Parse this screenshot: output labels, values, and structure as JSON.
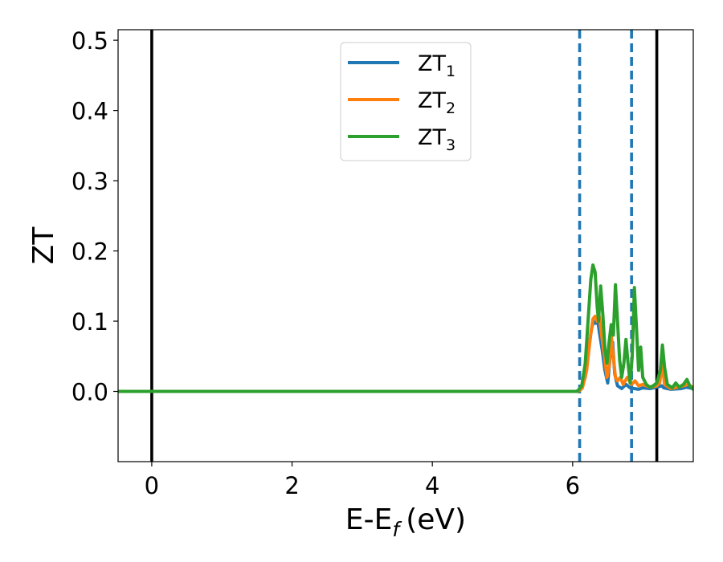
{
  "chart_data": {
    "type": "line",
    "xlabel": {
      "main": "E-E",
      "sub": "f",
      "unit": "(eV)"
    },
    "ylabel": "ZT",
    "xlim": [
      -0.48,
      7.72
    ],
    "ylim": [
      -0.1,
      0.515
    ],
    "x_ticks": [
      0,
      2,
      4,
      6
    ],
    "x_tick_labels": [
      "0",
      "2",
      "4",
      "6"
    ],
    "y_ticks": [
      0.0,
      0.1,
      0.2,
      0.3,
      0.4,
      0.5
    ],
    "y_tick_labels": [
      "0.0",
      "0.1",
      "0.2",
      "0.3",
      "0.4",
      "0.5"
    ],
    "grid": false,
    "legend_position": "upper-center",
    "vertical_lines": [
      {
        "x": 0.0,
        "style": "solid",
        "color": "#000000"
      },
      {
        "x": 7.2,
        "style": "solid",
        "color": "#000000"
      },
      {
        "x": 6.1,
        "style": "dashed",
        "color": "#1f77b4"
      },
      {
        "x": 6.84,
        "style": "dashed",
        "color": "#1f77b4"
      }
    ],
    "series": [
      {
        "name": "ZT",
        "name_sub": "1",
        "color": "#1f77b4",
        "points": [
          [
            -0.48,
            0
          ],
          [
            6.05,
            0
          ],
          [
            6.12,
            0.003
          ],
          [
            6.18,
            0.02
          ],
          [
            6.23,
            0.06
          ],
          [
            6.27,
            0.09
          ],
          [
            6.3,
            0.1
          ],
          [
            6.33,
            0.097
          ],
          [
            6.36,
            0.1
          ],
          [
            6.38,
            0.085
          ],
          [
            6.42,
            0.06
          ],
          [
            6.46,
            0.03
          ],
          [
            6.5,
            0.012
          ],
          [
            6.54,
            0.055
          ],
          [
            6.57,
            0.07
          ],
          [
            6.6,
            0.025
          ],
          [
            6.64,
            0.008
          ],
          [
            6.7,
            0.004
          ],
          [
            6.76,
            0.01
          ],
          [
            6.82,
            0.005
          ],
          [
            6.88,
            0.004
          ],
          [
            6.94,
            0.003
          ],
          [
            7.0,
            0.005
          ],
          [
            7.1,
            0.004
          ],
          [
            7.2,
            0.006
          ],
          [
            7.27,
            0.008
          ],
          [
            7.3,
            0.005
          ],
          [
            7.4,
            0.003
          ],
          [
            7.55,
            0.004
          ],
          [
            7.62,
            0.006
          ],
          [
            7.72,
            0.004
          ]
        ]
      },
      {
        "name": "ZT",
        "name_sub": "2",
        "color": "#ff7f0e",
        "points": [
          [
            -0.48,
            0
          ],
          [
            6.08,
            0
          ],
          [
            6.14,
            0.005
          ],
          [
            6.2,
            0.03
          ],
          [
            6.25,
            0.075
          ],
          [
            6.29,
            0.103
          ],
          [
            6.32,
            0.107
          ],
          [
            6.35,
            0.1
          ],
          [
            6.38,
            0.107
          ],
          [
            6.42,
            0.075
          ],
          [
            6.46,
            0.045
          ],
          [
            6.49,
            0.02
          ],
          [
            6.52,
            0.035
          ],
          [
            6.55,
            0.08
          ],
          [
            6.58,
            0.05
          ],
          [
            6.61,
            0.02
          ],
          [
            6.64,
            0.015
          ],
          [
            6.68,
            0.02
          ],
          [
            6.72,
            0.01
          ],
          [
            6.78,
            0.02
          ],
          [
            6.84,
            0.01
          ],
          [
            6.89,
            0.015
          ],
          [
            6.94,
            0.008
          ],
          [
            7.0,
            0.01
          ],
          [
            7.1,
            0.006
          ],
          [
            7.2,
            0.008
          ],
          [
            7.24,
            0.012
          ],
          [
            7.28,
            0.04
          ],
          [
            7.31,
            0.01
          ],
          [
            7.4,
            0.004
          ],
          [
            7.5,
            0.006
          ],
          [
            7.58,
            0.008
          ],
          [
            7.65,
            0.01
          ],
          [
            7.72,
            0.005
          ]
        ]
      },
      {
        "name": "ZT",
        "name_sub": "3",
        "color": "#2ca02c",
        "points": [
          [
            -0.48,
            0
          ],
          [
            6.07,
            0
          ],
          [
            6.13,
            0.008
          ],
          [
            6.18,
            0.04
          ],
          [
            6.22,
            0.1
          ],
          [
            6.26,
            0.16
          ],
          [
            6.29,
            0.18
          ],
          [
            6.32,
            0.17
          ],
          [
            6.35,
            0.12
          ],
          [
            6.37,
            0.1
          ],
          [
            6.4,
            0.15
          ],
          [
            6.43,
            0.11
          ],
          [
            6.46,
            0.06
          ],
          [
            6.49,
            0.04
          ],
          [
            6.52,
            0.07
          ],
          [
            6.55,
            0.095
          ],
          [
            6.58,
            0.08
          ],
          [
            6.61,
            0.152
          ],
          [
            6.64,
            0.1
          ],
          [
            6.67,
            0.045
          ],
          [
            6.7,
            0.02
          ],
          [
            6.73,
            0.04
          ],
          [
            6.76,
            0.074
          ],
          [
            6.79,
            0.04
          ],
          [
            6.82,
            0.012
          ],
          [
            6.85,
            0.05
          ],
          [
            6.88,
            0.148
          ],
          [
            6.91,
            0.09
          ],
          [
            6.94,
            0.03
          ],
          [
            6.97,
            0.063
          ],
          [
            7.0,
            0.02
          ],
          [
            7.05,
            0.01
          ],
          [
            7.1,
            0.006
          ],
          [
            7.15,
            0.008
          ],
          [
            7.2,
            0.012
          ],
          [
            7.25,
            0.03
          ],
          [
            7.28,
            0.066
          ],
          [
            7.31,
            0.035
          ],
          [
            7.35,
            0.01
          ],
          [
            7.42,
            0.005
          ],
          [
            7.47,
            0.012
          ],
          [
            7.52,
            0.006
          ],
          [
            7.58,
            0.01
          ],
          [
            7.63,
            0.017
          ],
          [
            7.67,
            0.008
          ],
          [
            7.72,
            0.003
          ]
        ]
      }
    ]
  }
}
